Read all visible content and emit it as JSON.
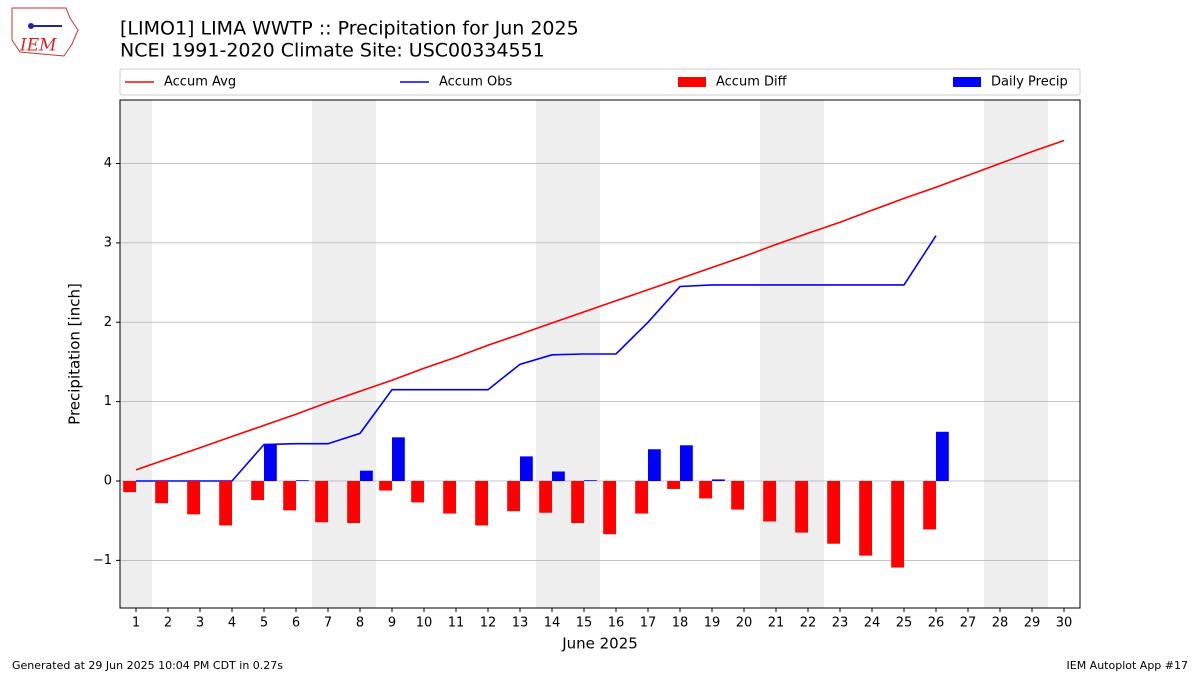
{
  "logo_text": "IEM",
  "chart_data": {
    "type": "line",
    "title": "[LIMO1] LIMA WWTP :: Precipitation for Jun 2025",
    "subtitle": "NCEI 1991-2020 Climate Site: USC00334551",
    "ylabel": "Precipitation [inch]",
    "xlabel": "June 2025",
    "x": [
      1,
      2,
      3,
      4,
      5,
      6,
      7,
      8,
      9,
      10,
      11,
      12,
      13,
      14,
      15,
      16,
      17,
      18,
      19,
      20,
      21,
      22,
      23,
      24,
      25,
      26,
      27,
      28,
      29,
      30
    ],
    "xlim": [
      0.5,
      30.5
    ],
    "xticks": [
      1,
      2,
      3,
      4,
      5,
      6,
      7,
      8,
      9,
      10,
      11,
      12,
      13,
      14,
      15,
      16,
      17,
      18,
      19,
      20,
      21,
      22,
      23,
      24,
      25,
      26,
      27,
      28,
      29,
      30
    ],
    "ylim": [
      -1.6,
      4.8
    ],
    "yticks": [
      {
        "value": -1,
        "label": "−1"
      },
      0,
      1,
      2,
      3,
      4
    ],
    "grid": true,
    "shaded_days": [
      1,
      7,
      8,
      14,
      15,
      21,
      22,
      28,
      29
    ],
    "series": [
      {
        "name": "Accum Avg",
        "type": "line",
        "color": "#ff0000",
        "values": [
          0.14,
          0.28,
          0.42,
          0.56,
          0.7,
          0.84,
          0.99,
          1.13,
          1.27,
          1.42,
          1.56,
          1.71,
          1.85,
          1.99,
          2.13,
          2.27,
          2.41,
          2.55,
          2.69,
          2.83,
          2.98,
          3.12,
          3.26,
          3.41,
          3.56,
          3.7,
          3.85,
          4.0,
          4.15,
          4.29
        ]
      },
      {
        "name": "Accum Obs",
        "type": "line",
        "color": "#0000ff",
        "values": [
          0,
          0,
          0,
          0,
          0.46,
          0.47,
          0.47,
          0.6,
          1.15,
          1.15,
          1.15,
          1.15,
          1.47,
          1.59,
          1.6,
          1.6,
          2.0,
          2.45,
          2.47,
          2.47,
          2.47,
          2.47,
          2.47,
          2.47,
          2.47,
          3.09,
          null,
          null,
          null,
          null
        ]
      },
      {
        "name": "Accum Diff",
        "type": "bar",
        "color": "#ff0000",
        "values": [
          -0.14,
          -0.28,
          -0.42,
          -0.56,
          -0.24,
          -0.37,
          -0.52,
          -0.53,
          -0.12,
          -0.27,
          -0.41,
          -0.56,
          -0.38,
          -0.4,
          -0.53,
          -0.67,
          -0.41,
          -0.1,
          -0.22,
          -0.36,
          -0.51,
          -0.65,
          -0.79,
          -0.94,
          -1.09,
          -0.61,
          null,
          null,
          null,
          null
        ]
      },
      {
        "name": "Daily Precip",
        "type": "bar",
        "color": "#0000ff",
        "values": [
          0,
          0,
          0,
          0,
          0.46,
          0.01,
          0,
          0.13,
          0.55,
          0,
          0,
          0,
          0.31,
          0.12,
          0.01,
          0,
          0.4,
          0.45,
          0.02,
          0,
          0,
          0,
          0,
          0,
          0,
          0.62,
          null,
          null,
          null,
          null
        ]
      }
    ]
  },
  "footer_left": "Generated at 29 Jun 2025 10:04 PM CDT in 0.27s",
  "footer_right": "IEM Autoplot App #17"
}
